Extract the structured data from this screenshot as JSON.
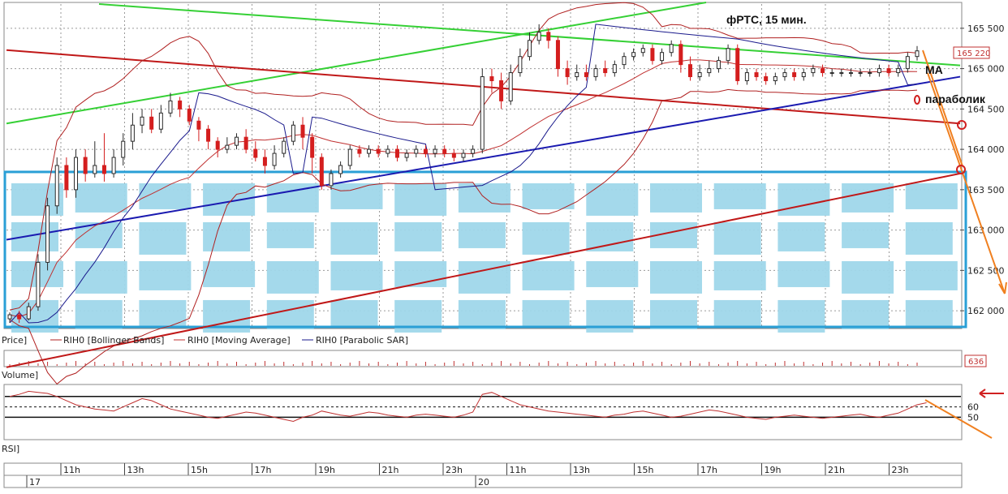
{
  "title": "фРТС,   15 мин.",
  "annotations": {
    "ma": "MA",
    "parabolic": "параболик"
  },
  "legend": {
    "price": "Price]",
    "bollinger": "RIH0 [Bollinger Bands]",
    "ma": "RIH0 [Moving Average]",
    "sar": "RIH0 [Parabolic SAR]"
  },
  "panels": {
    "volume_label": "Volume]",
    "volume_value": "636",
    "rsi_label": "RSI]"
  },
  "colors": {
    "bull": "#2a2a2a",
    "bear": "#d41e1e",
    "bollinger": "#b02020",
    "ma": "#c03030",
    "sar": "#1a1a8c",
    "green_line": "#35d035",
    "blue_line": "#1a1ab0",
    "red_line": "#c01818",
    "highlight": "#2a9fd6",
    "arrow": "#f08020"
  },
  "chart_data": {
    "type": "candlestick",
    "y_ticks": [
      "165 500",
      "165 000",
      "164 500",
      "164 000",
      "163 500",
      "163 000",
      "162 500",
      "162 000"
    ],
    "ylim": [
      161800,
      165800
    ],
    "last_price_label": "165 220",
    "day_labels": [
      "17",
      "20"
    ],
    "time_labels": [
      "11h",
      "13h",
      "15h",
      "17h",
      "19h",
      "21h",
      "23h",
      "11h",
      "13h",
      "15h",
      "17h",
      "19h",
      "21h",
      "23h"
    ],
    "rsi_ticks": [
      "60",
      "50"
    ],
    "candles": [
      [
        161900,
        161950,
        161850,
        161980
      ],
      [
        161950,
        161900,
        161850,
        162000
      ],
      [
        161900,
        162050,
        161880,
        162100
      ],
      [
        162050,
        162600,
        162000,
        162700
      ],
      [
        162600,
        163300,
        162500,
        163400
      ],
      [
        163300,
        163800,
        163200,
        163900
      ],
      [
        163800,
        163500,
        163400,
        163900
      ],
      [
        163500,
        163900,
        163400,
        164000
      ],
      [
        163900,
        163700,
        163600,
        164000
      ],
      [
        163700,
        163800,
        163650,
        164100
      ],
      [
        163800,
        163700,
        163600,
        164200
      ],
      [
        163700,
        163900,
        163650,
        164000
      ],
      [
        163900,
        164100,
        163800,
        164200
      ],
      [
        164100,
        164300,
        164000,
        164450
      ],
      [
        164300,
        164400,
        164200,
        164500
      ],
      [
        164400,
        164250,
        164200,
        164500
      ],
      [
        164250,
        164450,
        164200,
        164550
      ],
      [
        164450,
        164600,
        164400,
        164700
      ],
      [
        164600,
        164500,
        164400,
        164650
      ],
      [
        164500,
        164350,
        164300,
        164550
      ],
      [
        164350,
        164250,
        164100,
        164400
      ],
      [
        164250,
        164100,
        164000,
        164300
      ],
      [
        164100,
        164000,
        163900,
        164150
      ],
      [
        164000,
        164050,
        163950,
        164150
      ],
      [
        164050,
        164150,
        164000,
        164200
      ],
      [
        164150,
        164000,
        163950,
        164250
      ],
      [
        164000,
        163900,
        163850,
        164100
      ],
      [
        163900,
        163800,
        163700,
        164000
      ],
      [
        163800,
        163950,
        163750,
        164050
      ],
      [
        163950,
        164100,
        163900,
        164150
      ],
      [
        164100,
        164300,
        164050,
        164350
      ],
      [
        164300,
        164150,
        164000,
        164400
      ],
      [
        164150,
        163900,
        163700,
        164200
      ],
      [
        163900,
        163550,
        163500,
        163950
      ],
      [
        163550,
        163700,
        163500,
        163750
      ],
      [
        163700,
        163800,
        163650,
        163850
      ],
      [
        163800,
        164000,
        163750,
        164050
      ],
      [
        164000,
        163950,
        163900,
        164050
      ],
      [
        163950,
        164000,
        163900,
        164050
      ],
      [
        164000,
        163950,
        163900,
        164050
      ],
      [
        163950,
        164000,
        163900,
        164050
      ],
      [
        164000,
        163900,
        163850,
        164050
      ],
      [
        163900,
        163950,
        163850,
        164000
      ],
      [
        163950,
        164000,
        163900,
        164050
      ],
      [
        164000,
        163950,
        163900,
        164050
      ],
      [
        163950,
        164000,
        163900,
        164050
      ],
      [
        164000,
        163950,
        163900,
        164050
      ],
      [
        163950,
        163900,
        163850,
        164000
      ],
      [
        163900,
        163950,
        163850,
        164000
      ],
      [
        163950,
        164000,
        163900,
        164050
      ],
      [
        164000,
        164900,
        163950,
        165000
      ],
      [
        164900,
        164850,
        164700,
        165000
      ],
      [
        164850,
        164600,
        164500,
        164950
      ],
      [
        164600,
        164950,
        164550,
        165050
      ],
      [
        164950,
        165150,
        164900,
        165250
      ],
      [
        165150,
        165350,
        165100,
        165450
      ],
      [
        165350,
        165450,
        165300,
        165550
      ],
      [
        165450,
        165350,
        165250,
        165500
      ],
      [
        165350,
        165000,
        164900,
        165400
      ],
      [
        165000,
        164900,
        164800,
        165100
      ],
      [
        164900,
        164950,
        164850,
        165050
      ],
      [
        164950,
        164900,
        164850,
        165050
      ],
      [
        164900,
        165000,
        164850,
        165050
      ],
      [
        165000,
        164950,
        164900,
        165100
      ],
      [
        164950,
        165050,
        164900,
        165100
      ],
      [
        165050,
        165150,
        165000,
        165200
      ],
      [
        165150,
        165200,
        165100,
        165250
      ],
      [
        165200,
        165250,
        165150,
        165300
      ],
      [
        165250,
        165100,
        165050,
        165300
      ],
      [
        165100,
        165200,
        165050,
        165250
      ],
      [
        165200,
        165300,
        165150,
        165350
      ],
      [
        165300,
        165050,
        164950,
        165350
      ],
      [
        165050,
        164900,
        164850,
        165150
      ],
      [
        164900,
        164950,
        164850,
        165050
      ],
      [
        164950,
        165000,
        164900,
        165100
      ],
      [
        165000,
        165100,
        164950,
        165150
      ],
      [
        165100,
        165250,
        165050,
        165300
      ],
      [
        165250,
        164850,
        164800,
        165300
      ],
      [
        164850,
        164950,
        164800,
        165000
      ],
      [
        164950,
        164900,
        164850,
        165000
      ],
      [
        164900,
        164850,
        164800,
        164950
      ],
      [
        164850,
        164900,
        164800,
        164950
      ],
      [
        164900,
        164950,
        164850,
        165000
      ],
      [
        164950,
        164900,
        164850,
        165000
      ],
      [
        164900,
        164950,
        164850,
        165000
      ],
      [
        164950,
        165000,
        164900,
        165050
      ],
      [
        165000,
        164950,
        164900,
        165050
      ],
      [
        164950,
        164950,
        164900,
        165000
      ],
      [
        164950,
        164950,
        164900,
        165000
      ],
      [
        164950,
        164950,
        164900,
        165000
      ],
      [
        164950,
        164950,
        164900,
        165000
      ],
      [
        164950,
        164950,
        164900,
        165000
      ],
      [
        164950,
        165000,
        164900,
        165050
      ],
      [
        165000,
        164950,
        164900,
        165050
      ],
      [
        164950,
        165000,
        164900,
        165050
      ],
      [
        165000,
        165150,
        164950,
        165200
      ],
      [
        165150,
        165220,
        165100,
        165280
      ]
    ],
    "rsi": [
      70,
      72,
      75,
      74,
      73,
      70,
      66,
      62,
      60,
      58,
      57,
      56,
      60,
      64,
      68,
      66,
      62,
      58,
      56,
      54,
      52,
      50,
      49,
      51,
      53,
      55,
      54,
      52,
      50,
      48,
      46,
      50,
      52,
      56,
      54,
      52,
      51,
      53,
      55,
      54,
      52,
      51,
      50,
      52,
      53,
      52,
      51,
      50,
      52,
      55,
      72,
      74,
      70,
      66,
      62,
      60,
      58,
      56,
      55,
      54,
      53,
      52,
      51,
      50,
      52,
      53,
      55,
      56,
      54,
      52,
      50,
      51,
      53,
      55,
      57,
      56,
      54,
      52,
      50,
      49,
      48,
      50,
      51,
      52,
      51,
      50,
      49,
      50,
      51,
      52,
      53,
      51,
      50,
      52,
      54,
      58,
      62,
      64
    ]
  }
}
